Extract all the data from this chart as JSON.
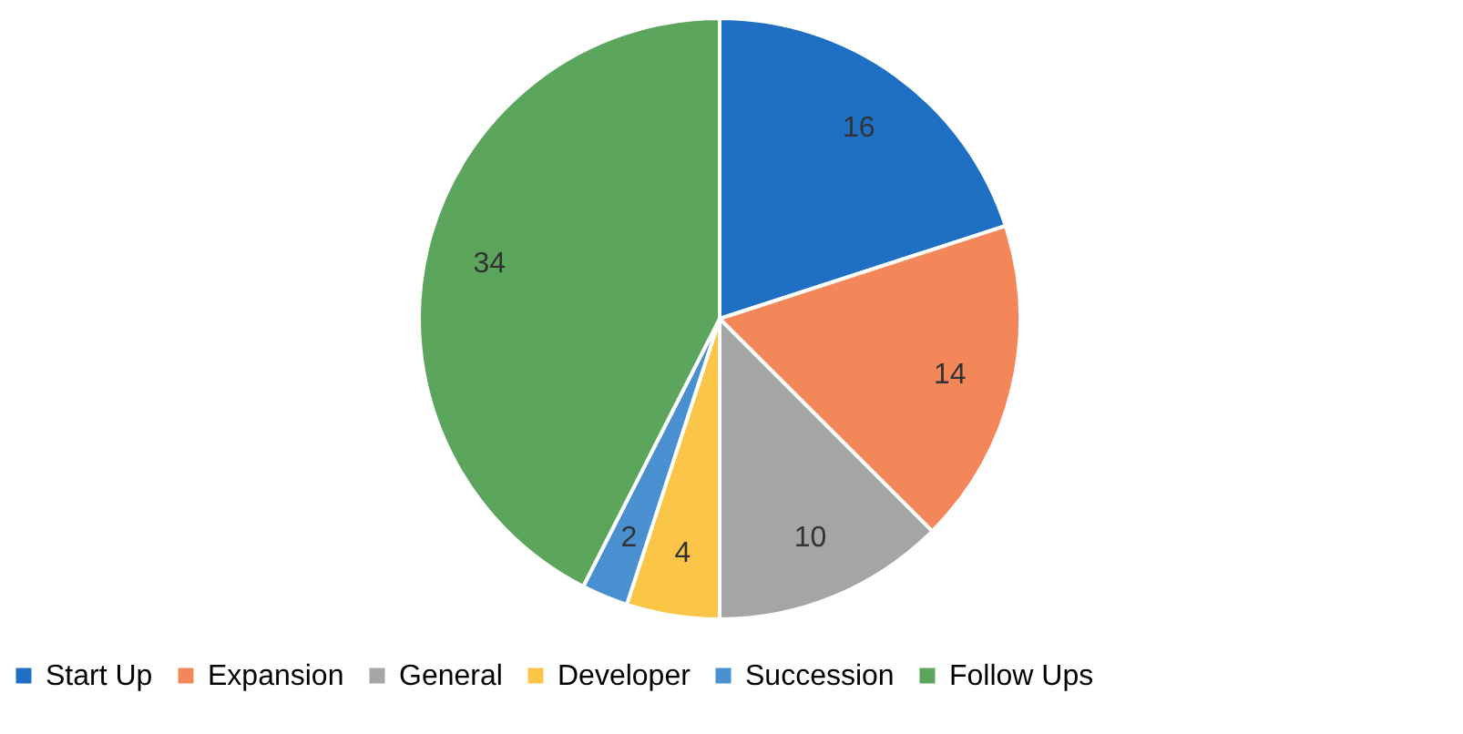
{
  "chart_data": {
    "type": "pie",
    "categories": [
      "Start Up",
      "Expansion",
      "General",
      "Developer",
      "Succession",
      "Follow Ups"
    ],
    "values": [
      16,
      14,
      10,
      4,
      2,
      34
    ],
    "colors": [
      "#1f6fc5",
      "#f4875a",
      "#a5a5a5",
      "#fbc548",
      "#4a90d0",
      "#5ca55c"
    ],
    "data_labels": true,
    "legend": "bottom"
  }
}
